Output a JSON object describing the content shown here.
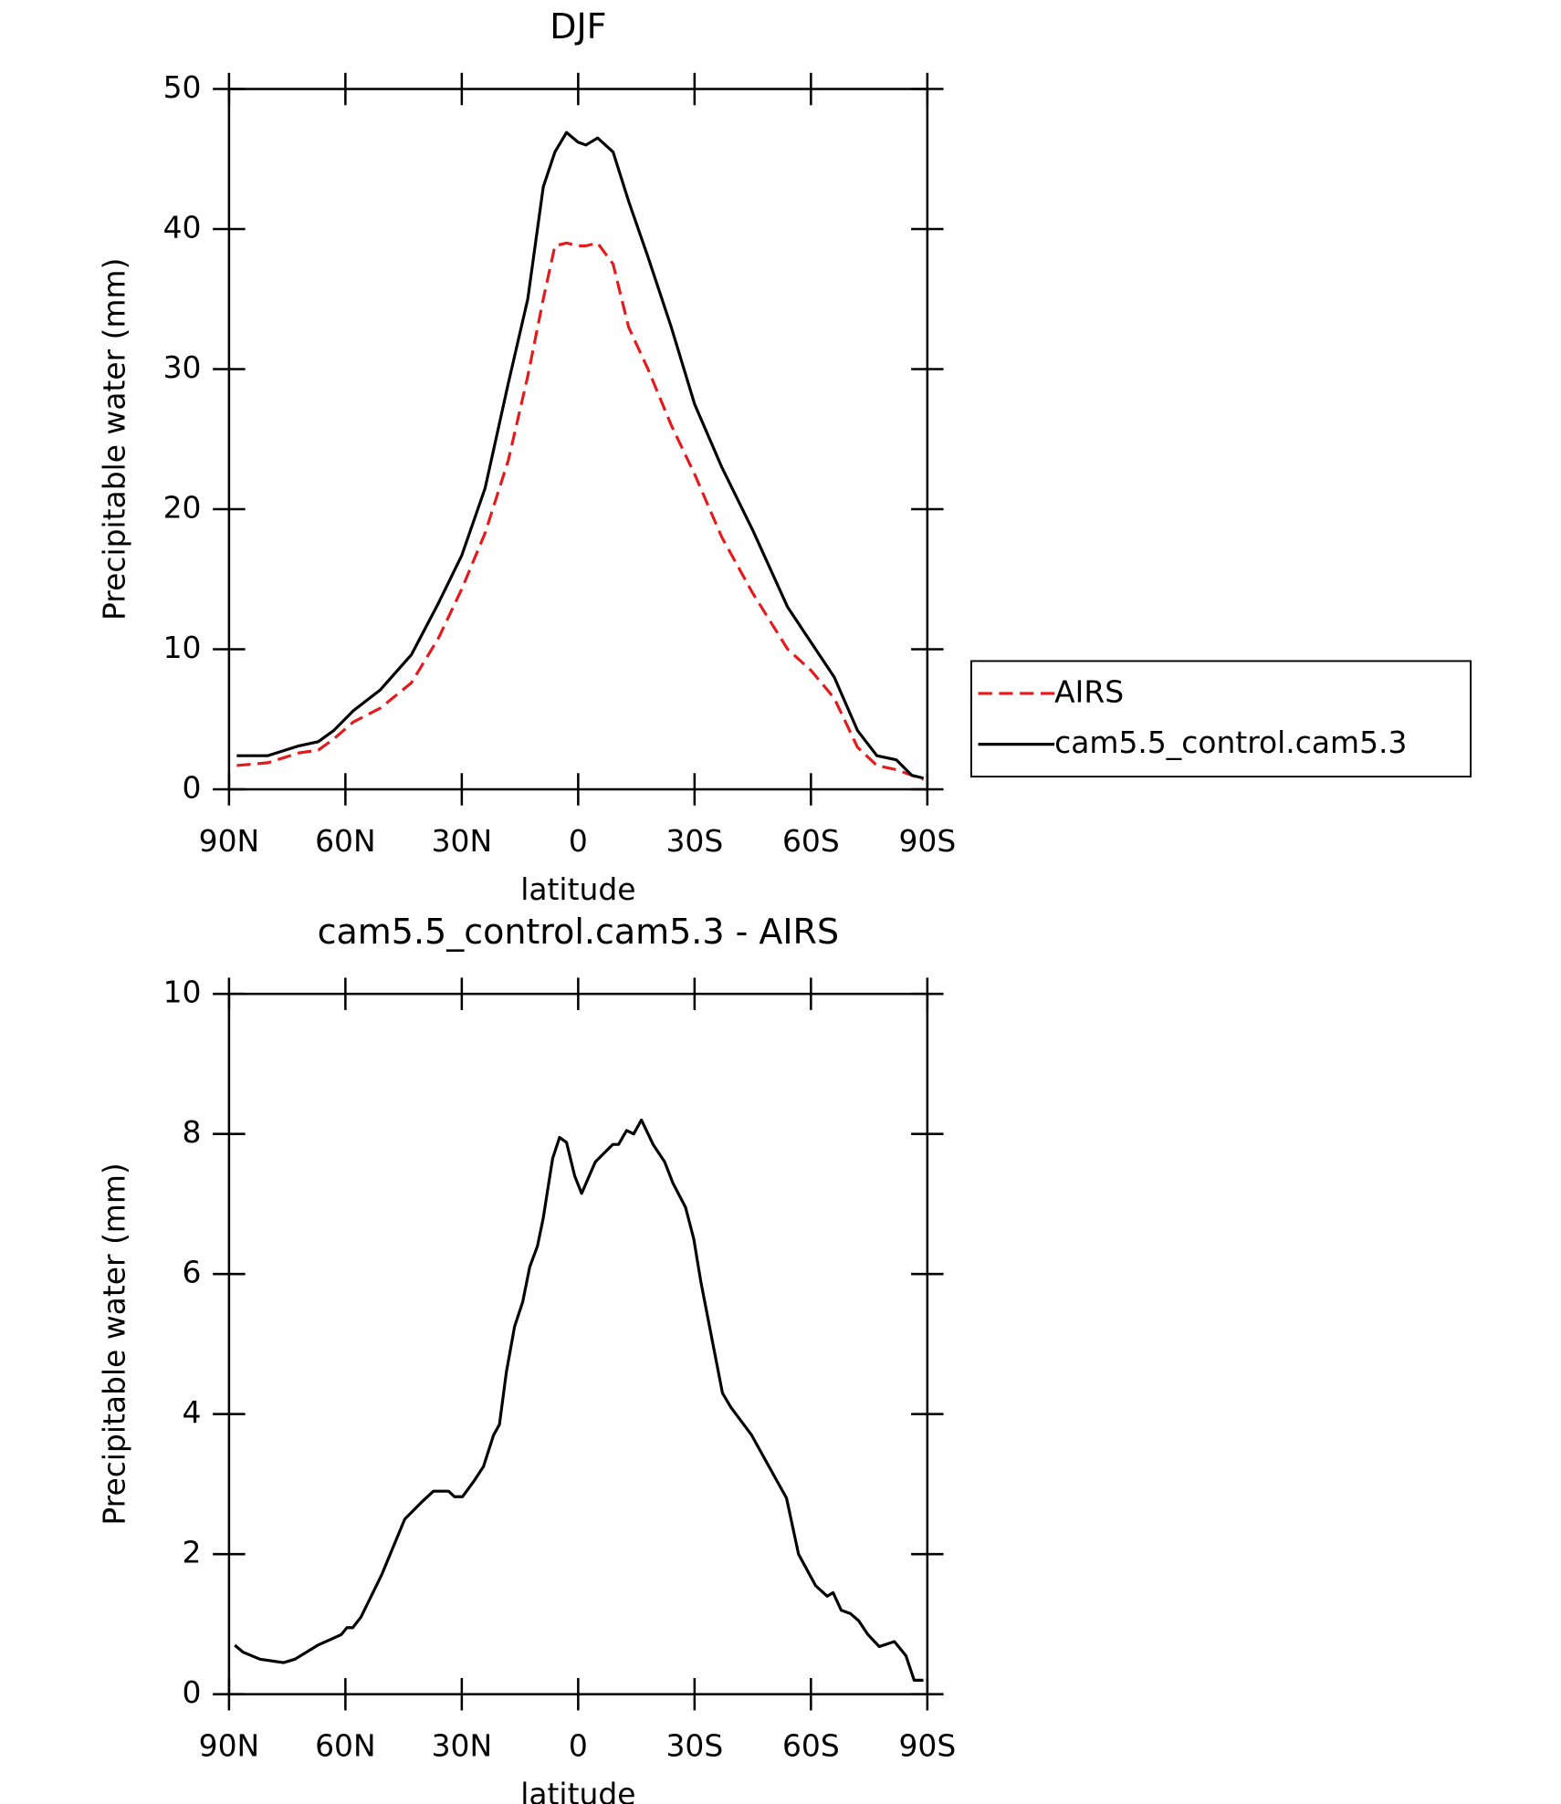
{
  "chart_data": [
    {
      "type": "line",
      "title": "DJF",
      "xlabel": "latitude",
      "ylabel": "Precipitable water (mm)",
      "x": [
        88,
        80,
        72,
        67,
        63,
        58,
        51,
        43,
        36,
        30,
        24,
        18,
        13,
        9,
        6,
        3,
        0,
        -2,
        -5,
        -9,
        -13,
        -18,
        -24,
        -30,
        -37,
        -45,
        -54,
        -60,
        -66,
        -72,
        -77,
        -82,
        -86,
        -89
      ],
      "series": [
        {
          "name": "AIRS",
          "color": "#e41a1c",
          "line_style": "dashed",
          "values": [
            1.7,
            1.9,
            2.6,
            2.8,
            3.6,
            4.8,
            5.8,
            7.6,
            10.8,
            14.3,
            18.3,
            23.5,
            29.5,
            35,
            38.8,
            39,
            38.8,
            38.8,
            39,
            37.5,
            33,
            30,
            26,
            22.5,
            18,
            14,
            10,
            8.5,
            6.5,
            3,
            1.7,
            1.4,
            1.0,
            0.7
          ]
        },
        {
          "name": "cam5.5_control.cam5.3",
          "color": "#000000",
          "line_style": "solid",
          "values": [
            2.4,
            2.4,
            3.1,
            3.4,
            4.2,
            5.6,
            7.1,
            9.6,
            13.3,
            16.7,
            21.5,
            29,
            35,
            43,
            45.5,
            46.9,
            46.2,
            46,
            46.5,
            45.5,
            42,
            38,
            33,
            27.5,
            23,
            18.5,
            13,
            10.5,
            8,
            4.2,
            2.4,
            2.1,
            1.0,
            0.8
          ]
        }
      ],
      "xlim": [
        90,
        -90
      ],
      "xticks": [
        {
          "value": 90,
          "label": "90N"
        },
        {
          "value": 60,
          "label": "60N"
        },
        {
          "value": 30,
          "label": "30N"
        },
        0,
        {
          "value": -30,
          "label": "30S"
        },
        {
          "value": -60,
          "label": "60S"
        },
        {
          "value": -90,
          "label": "90S"
        }
      ],
      "ylim": [
        0,
        50
      ],
      "yticks": [
        0,
        10,
        20,
        30,
        40,
        50
      ],
      "legend": "outside-right"
    },
    {
      "type": "line",
      "title": "cam5.5_control.cam5.3 - AIRS",
      "xlabel": "latitude",
      "ylabel": "Precipitable water (mm)",
      "x": [
        88.5,
        86.4,
        82,
        76,
        73,
        67.1,
        61.1,
        59.6,
        58.1,
        56,
        50.7,
        44.7,
        40.2,
        37.3,
        33.4,
        31.9,
        29.8,
        26.8,
        24.4,
        21.8,
        20.3,
        18.5,
        16.4,
        14.3,
        12.5,
        10.5,
        9,
        6.6,
        4.8,
        3,
        0.9,
        -0.9,
        -4.4,
        -8.9,
        -10.4,
        -12.5,
        -14.3,
        -16.3,
        -19.3,
        -22.3,
        -24.4,
        -27.7,
        -29.8,
        -31.6,
        -37.2,
        -39.3,
        -44.7,
        -50.7,
        -53.7,
        -56.8,
        -61.2,
        -64.2,
        -65.7,
        -67.8,
        -70.2,
        -72.3,
        -74.7,
        -77.6,
        -81.5,
        -84.5,
        -86.6,
        -89
      ],
      "series": [
        {
          "color": "#000000",
          "line_style": "solid",
          "values": [
            0.7,
            0.6,
            0.5,
            0.45,
            0.5,
            0.7,
            0.85,
            0.95,
            0.95,
            1.1,
            1.7,
            2.5,
            2.75,
            2.9,
            2.9,
            2.82,
            2.82,
            3.05,
            3.25,
            3.7,
            3.85,
            4.6,
            5.25,
            5.6,
            6.1,
            6.4,
            6.8,
            7.65,
            7.95,
            7.88,
            7.4,
            7.15,
            7.6,
            7.85,
            7.85,
            8.05,
            8.0,
            8.2,
            7.85,
            7.6,
            7.3,
            6.95,
            6.5,
            5.9,
            4.3,
            4.1,
            3.7,
            3.1,
            2.8,
            2.0,
            1.55,
            1.4,
            1.45,
            1.2,
            1.15,
            1.05,
            0.85,
            0.68,
            0.75,
            0.55,
            0.2,
            0.2
          ]
        }
      ],
      "xlim": [
        90,
        -90
      ],
      "xticks": [
        {
          "value": 90,
          "label": "90N"
        },
        {
          "value": 60,
          "label": "60N"
        },
        {
          "value": 30,
          "label": "30N"
        },
        0,
        {
          "value": -30,
          "label": "30S"
        },
        {
          "value": -60,
          "label": "60S"
        },
        {
          "value": -90,
          "label": "90S"
        }
      ],
      "ylim": [
        0,
        10
      ],
      "yticks": [
        0,
        2,
        4,
        6,
        8,
        10
      ]
    }
  ]
}
